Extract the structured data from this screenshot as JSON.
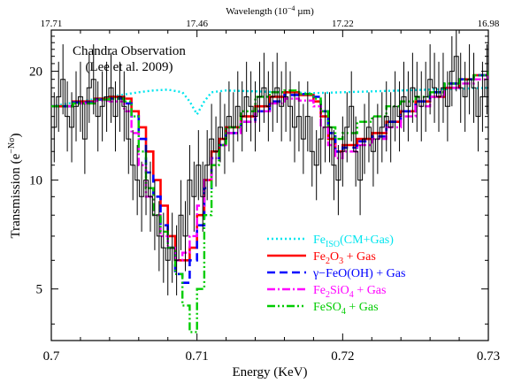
{
  "chart_data": {
    "type": "line",
    "xlabel": "Energy (KeV)",
    "ylabel": "Transmission (e^{-Nσ})",
    "ylabel_main": "Transmission (e",
    "ylabel_sup": "−Nσ",
    "ylabel_close": ")",
    "xlim": [
      0.7,
      0.73
    ],
    "ylim": [
      3.6,
      26
    ],
    "y_scale": "log",
    "xticks": [
      0.7,
      0.71,
      0.72,
      0.73
    ],
    "xtick_labels": [
      "0.7",
      "0.71",
      "0.72",
      "0.73"
    ],
    "yticks": [
      5,
      10,
      20
    ],
    "ytick_labels": [
      "5",
      "10",
      "20"
    ],
    "top_axis": {
      "label_main": "Wavelength (10",
      "label_sup": "−4",
      "label_close": " µm)",
      "ticks": [
        {
          "energy": 0.7,
          "label": "17.71"
        },
        {
          "energy": 0.71,
          "label": "17.46"
        },
        {
          "energy": 0.72,
          "label": "17.22"
        },
        {
          "energy": 0.73,
          "label": "16.98"
        }
      ]
    },
    "annotation": {
      "line1": "Chandra Observation",
      "line2": "(Lee et al. 2009)"
    },
    "legend": {
      "placement": "bottom-right",
      "entries": [
        {
          "id": "fe-iso",
          "parts": [
            [
              "n",
              "Fe"
            ],
            [
              "sub",
              "ISO"
            ],
            [
              "n",
              "(CM+Gas)"
            ]
          ],
          "color": "#00e5ee",
          "dash": "dotted"
        },
        {
          "id": "fe2o3",
          "parts": [
            [
              "n",
              "Fe"
            ],
            [
              "sub",
              "2"
            ],
            [
              "n",
              "O"
            ],
            [
              "sub",
              "3"
            ],
            [
              "n",
              " + Gas"
            ]
          ],
          "color": "#ff0000",
          "dash": "solid"
        },
        {
          "id": "feooh",
          "parts": [
            [
              "n",
              "γ−FeO(OH) + Gas"
            ]
          ],
          "color": "#0000ff",
          "dash": "dashed"
        },
        {
          "id": "fe2sio4",
          "parts": [
            [
              "n",
              "Fe"
            ],
            [
              "sub",
              "2"
            ],
            [
              "n",
              "SiO"
            ],
            [
              "sub",
              "4"
            ],
            [
              "n",
              " + Gas"
            ]
          ],
          "color": "#ff00ff",
          "dash": "dashdot"
        },
        {
          "id": "feso4",
          "parts": [
            [
              "n",
              "FeSO"
            ],
            [
              "sub",
              "4"
            ],
            [
              "n",
              " + Gas"
            ]
          ],
          "color": "#00cc00",
          "dash": "dashdotdot"
        }
      ]
    },
    "observation": {
      "x": [
        0.7002,
        0.7005,
        0.7008,
        0.7011,
        0.7014,
        0.7017,
        0.702,
        0.7023,
        0.7026,
        0.7029,
        0.7032,
        0.7035,
        0.7038,
        0.7041,
        0.7044,
        0.7047,
        0.705,
        0.7053,
        0.7056,
        0.7059,
        0.7062,
        0.7065,
        0.7068,
        0.7071,
        0.7074,
        0.7077,
        0.708,
        0.7083,
        0.7086,
        0.7089,
        0.7092,
        0.7095,
        0.7098,
        0.7101,
        0.7104,
        0.7107,
        0.711,
        0.7113,
        0.7116,
        0.7119,
        0.7122,
        0.7125,
        0.7128,
        0.7131,
        0.7134,
        0.7137,
        0.714,
        0.7143,
        0.7146,
        0.7149,
        0.7152,
        0.7155,
        0.7158,
        0.7161,
        0.7164,
        0.7167,
        0.717,
        0.7173,
        0.7176,
        0.7179,
        0.7182,
        0.7185,
        0.7188,
        0.7191,
        0.7194,
        0.7197,
        0.72,
        0.7203,
        0.7206,
        0.7209,
        0.7212,
        0.7215,
        0.7218,
        0.7221,
        0.7224,
        0.7227,
        0.723,
        0.7233,
        0.7236,
        0.7239,
        0.7242,
        0.7245,
        0.7248,
        0.7251,
        0.7254,
        0.7257,
        0.726,
        0.7263,
        0.7266,
        0.7269,
        0.7272,
        0.7275,
        0.7278,
        0.7281,
        0.7284,
        0.7287,
        0.729,
        0.7293,
        0.7296,
        0.7299
      ],
      "y": [
        14,
        17,
        19,
        15,
        14,
        16,
        17,
        13,
        18,
        19,
        15,
        16,
        17,
        18,
        15,
        17,
        16,
        13,
        11,
        10,
        9,
        10,
        9,
        8,
        7,
        6.5,
        6,
        6.5,
        6,
        8,
        7,
        10,
        9,
        11,
        9,
        11,
        13,
        12,
        14,
        13,
        15,
        14,
        16,
        15,
        17,
        16,
        15,
        17,
        18,
        16,
        17,
        18,
        16,
        17,
        16,
        14,
        15,
        13,
        15,
        12,
        11,
        13,
        14,
        14,
        11,
        10,
        12,
        14,
        16,
        12,
        10,
        13,
        14,
        12,
        13,
        14,
        15,
        14,
        16,
        15,
        17,
        16,
        18,
        17,
        16,
        17,
        19,
        18,
        17,
        18,
        16,
        20,
        22,
        18,
        17,
        19,
        18,
        15,
        17,
        19
      ],
      "err_factor": 1.25
    },
    "series": [
      {
        "name": "Fe_ISO(CM+Gas)",
        "color": "#00e5ee",
        "dash": "dotted",
        "x": [
          0.7,
          0.702,
          0.704,
          0.706,
          0.707,
          0.708,
          0.709,
          0.7095,
          0.71,
          0.7105,
          0.711,
          0.712,
          0.714,
          0.716,
          0.718,
          0.72,
          0.722,
          0.724,
          0.726,
          0.728,
          0.73
        ],
        "y": [
          16,
          16.5,
          17,
          17.5,
          17.7,
          17.8,
          17.5,
          16.5,
          15.2,
          16.5,
          17.5,
          17.7,
          17.6,
          17.5,
          17.4,
          17.5,
          17.6,
          17.7,
          17.8,
          17.9,
          18
        ]
      },
      {
        "name": "Fe2O3 + Gas",
        "color": "#ff0000",
        "dash": "solid",
        "step": true,
        "x": [
          0.7,
          0.7015,
          0.703,
          0.704,
          0.705,
          0.7055,
          0.706,
          0.7065,
          0.707,
          0.7075,
          0.708,
          0.7085,
          0.709,
          0.7095,
          0.71,
          0.7105,
          0.711,
          0.7115,
          0.712,
          0.713,
          0.714,
          0.715,
          0.716,
          0.717,
          0.718,
          0.7185,
          0.719,
          0.7195,
          0.72,
          0.721,
          0.722,
          0.723,
          0.724,
          0.725,
          0.726,
          0.727,
          0.728,
          0.729,
          0.73
        ],
        "y": [
          16,
          16.5,
          16.8,
          17,
          16.8,
          15.5,
          14,
          12,
          10,
          8.5,
          7,
          6,
          6,
          6.5,
          8,
          10,
          12,
          13,
          14,
          15,
          16,
          17,
          17.5,
          17.2,
          16.5,
          15,
          13,
          12,
          12.5,
          13,
          13.5,
          14.5,
          15.5,
          16.5,
          17,
          18,
          19,
          19.5,
          20
        ]
      },
      {
        "name": "γ−FeO(OH) + Gas",
        "color": "#0000ff",
        "dash": "dashed",
        "step": true,
        "x": [
          0.7,
          0.7015,
          0.703,
          0.704,
          0.705,
          0.7055,
          0.706,
          0.7065,
          0.707,
          0.7075,
          0.708,
          0.7085,
          0.709,
          0.7095,
          0.71,
          0.7105,
          0.711,
          0.7115,
          0.712,
          0.713,
          0.714,
          0.715,
          0.716,
          0.717,
          0.718,
          0.7185,
          0.719,
          0.7195,
          0.72,
          0.721,
          0.722,
          0.723,
          0.724,
          0.725,
          0.726,
          0.727,
          0.728,
          0.729,
          0.73
        ],
        "y": [
          16,
          16.4,
          16.7,
          16.8,
          16.3,
          15,
          13,
          10.5,
          9,
          7.5,
          6.5,
          5.5,
          5.2,
          6,
          7.5,
          9.5,
          11.5,
          12.5,
          13.5,
          14.5,
          15.5,
          16.5,
          17.2,
          17.3,
          17,
          15.5,
          13.5,
          12,
          12.3,
          12.8,
          13.2,
          14.5,
          15.5,
          16.5,
          17.5,
          18.5,
          19,
          19.5,
          19.8
        ]
      },
      {
        "name": "Fe2SiO4 + Gas",
        "color": "#ff00ff",
        "dash": "dashdot",
        "step": true,
        "x": [
          0.7,
          0.7015,
          0.703,
          0.704,
          0.705,
          0.7055,
          0.706,
          0.7065,
          0.707,
          0.7075,
          0.708,
          0.7085,
          0.709,
          0.7095,
          0.71,
          0.7105,
          0.711,
          0.7115,
          0.712,
          0.713,
          0.714,
          0.715,
          0.716,
          0.717,
          0.718,
          0.7185,
          0.719,
          0.7195,
          0.72,
          0.721,
          0.722,
          0.723,
          0.724,
          0.725,
          0.726,
          0.727,
          0.728,
          0.729,
          0.73
        ],
        "y": [
          16,
          16.3,
          16.6,
          16.5,
          15.5,
          13.5,
          11,
          9,
          8,
          7,
          6.5,
          6,
          6.3,
          7,
          8.5,
          10,
          11.5,
          12.5,
          13.5,
          14.5,
          15.5,
          16.3,
          16.8,
          16.6,
          16,
          14,
          12.5,
          11.5,
          12,
          12.5,
          13,
          14,
          15,
          16,
          17,
          18,
          18.5,
          19,
          19.5
        ]
      },
      {
        "name": "FeSO4 + Gas",
        "color": "#00cc00",
        "dash": "dashdotdot",
        "step": true,
        "x": [
          0.7,
          0.7015,
          0.703,
          0.704,
          0.705,
          0.7055,
          0.706,
          0.7065,
          0.707,
          0.7075,
          0.708,
          0.7085,
          0.709,
          0.7095,
          0.71,
          0.7105,
          0.711,
          0.7115,
          0.712,
          0.713,
          0.714,
          0.715,
          0.716,
          0.717,
          0.718,
          0.7185,
          0.719,
          0.7195,
          0.72,
          0.721,
          0.722,
          0.723,
          0.724,
          0.725,
          0.726,
          0.727,
          0.728,
          0.729,
          0.73
        ],
        "y": [
          16,
          16.3,
          16.7,
          16.8,
          16.5,
          15,
          12,
          9.5,
          8,
          7.2,
          6.5,
          5.5,
          4.5,
          3.8,
          5,
          8,
          11,
          12.5,
          14,
          15.5,
          17,
          17.5,
          17.7,
          17.3,
          16.8,
          15.5,
          14,
          13,
          13.5,
          14.5,
          15,
          16,
          16.5,
          17,
          17.5,
          18.5,
          19,
          19.5,
          20
        ]
      }
    ]
  }
}
